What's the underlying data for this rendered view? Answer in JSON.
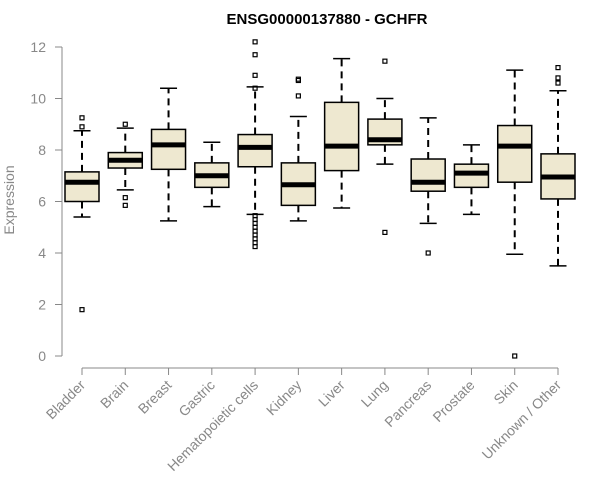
{
  "colors": {
    "box_fill": "#EEE8D0",
    "box_stroke": "#000000",
    "axis": "#888888",
    "text_muted": "#888888"
  },
  "chart_data": {
    "type": "boxplot",
    "title": "ENSG00000137880 - GCHFR",
    "xlabel": "",
    "ylabel": "Expression",
    "ylim": [
      0,
      12
    ],
    "yticks": [
      0,
      2,
      4,
      6,
      8,
      10,
      12
    ],
    "grid": false,
    "categories": [
      "Bladder",
      "Brain",
      "Breast",
      "Gastric",
      "Hematopoietic cells",
      "Kidney",
      "Liver",
      "Lung",
      "Pancreas",
      "Prostate",
      "Skin",
      "Unknown / Other"
    ],
    "boxes": [
      {
        "category": "Bladder",
        "whisker_low": 5.4,
        "q1": 6.0,
        "median": 6.75,
        "q3": 7.15,
        "whisker_high": 8.75,
        "outliers": [
          9.25,
          8.9,
          1.8
        ]
      },
      {
        "category": "Brain",
        "whisker_low": 6.45,
        "q1": 7.3,
        "median": 7.6,
        "q3": 7.9,
        "whisker_high": 8.85,
        "outliers": [
          9.0,
          6.15,
          5.85
        ]
      },
      {
        "category": "Breast",
        "whisker_low": 5.25,
        "q1": 7.25,
        "median": 8.2,
        "q3": 8.8,
        "whisker_high": 10.4,
        "outliers": []
      },
      {
        "category": "Gastric",
        "whisker_low": 5.8,
        "q1": 6.55,
        "median": 7.0,
        "q3": 7.5,
        "whisker_high": 8.3,
        "outliers": []
      },
      {
        "category": "Hematopoietic cells",
        "whisker_low": 5.5,
        "q1": 7.35,
        "median": 8.1,
        "q3": 8.6,
        "whisker_high": 10.45,
        "outliers": [
          12.2,
          11.7,
          10.9,
          10.4,
          5.45,
          5.3,
          5.15,
          5.0,
          4.85,
          4.7,
          4.55,
          4.4,
          4.25
        ]
      },
      {
        "category": "Kidney",
        "whisker_low": 5.25,
        "q1": 5.85,
        "median": 6.65,
        "q3": 7.5,
        "whisker_high": 9.3,
        "outliers": [
          10.75,
          10.7,
          10.1
        ]
      },
      {
        "category": "Liver",
        "whisker_low": 5.75,
        "q1": 7.2,
        "median": 8.15,
        "q3": 9.85,
        "whisker_high": 11.55,
        "outliers": []
      },
      {
        "category": "Lung",
        "whisker_low": 7.45,
        "q1": 8.2,
        "median": 8.4,
        "q3": 9.2,
        "whisker_high": 10.0,
        "outliers": [
          11.45,
          4.8
        ]
      },
      {
        "category": "Pancreas",
        "whisker_low": 5.15,
        "q1": 6.4,
        "median": 6.75,
        "q3": 7.65,
        "whisker_high": 9.25,
        "outliers": [
          4.0
        ]
      },
      {
        "category": "Prostate",
        "whisker_low": 5.5,
        "q1": 6.55,
        "median": 7.1,
        "q3": 7.45,
        "whisker_high": 8.2,
        "outliers": []
      },
      {
        "category": "Skin",
        "whisker_low": 3.95,
        "q1": 6.75,
        "median": 8.15,
        "q3": 8.95,
        "whisker_high": 11.1,
        "outliers": [
          0.0
        ]
      },
      {
        "category": "Unknown / Other",
        "whisker_low": 3.5,
        "q1": 6.1,
        "median": 6.95,
        "q3": 7.85,
        "whisker_high": 10.3,
        "outliers": [
          11.2,
          10.8,
          10.6
        ]
      }
    ]
  }
}
